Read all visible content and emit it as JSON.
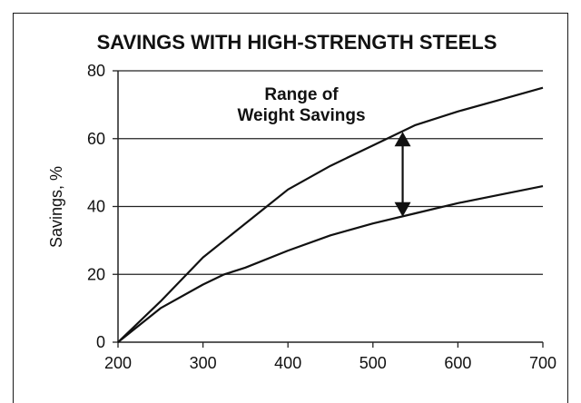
{
  "chart_data": {
    "type": "line",
    "title": "SAVINGS WITH HIGH-STRENGTH STEELS",
    "xlabel": "",
    "ylabel": "Savings, %",
    "xlim": [
      200,
      700
    ],
    "ylim": [
      0,
      80
    ],
    "x_ticks": [
      "200",
      "300",
      "400",
      "500",
      "600",
      "700"
    ],
    "y_ticks": [
      "0",
      "20",
      "40",
      "60",
      "80"
    ],
    "grid": "horizontal",
    "series": [
      {
        "x": [
          200,
          250,
          300,
          375,
          400,
          450,
          500,
          550,
          600,
          650,
          700
        ],
        "y": [
          0,
          12,
          25,
          40,
          45,
          52,
          58,
          64,
          68,
          71.5,
          75
        ]
      },
      {
        "x": [
          200,
          250,
          300,
          325,
          350,
          400,
          450,
          500,
          550,
          600,
          650,
          700
        ],
        "y": [
          0,
          10,
          17,
          20,
          22,
          27,
          31.5,
          35,
          38,
          41,
          43.5,
          46
        ]
      }
    ],
    "annotations": [
      {
        "text_lines": [
          "Range of",
          "Weight Savings"
        ],
        "arrow": {
          "x": 535,
          "y_from": 37,
          "y_to": 62
        }
      }
    ]
  }
}
